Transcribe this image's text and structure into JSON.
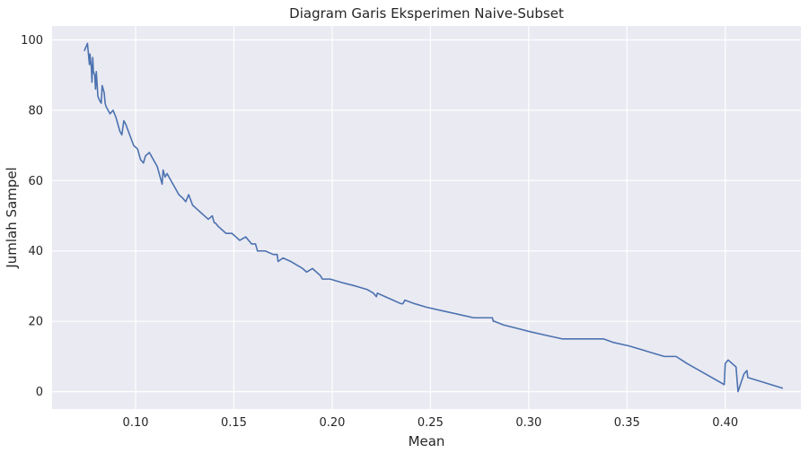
{
  "chart_data": {
    "type": "line",
    "title": "Diagram Garis Eksperimen Naive-Subset",
    "xlabel": "Mean",
    "ylabel": "Jumlah Sampel",
    "xlim": [
      0.0575,
      0.4385
    ],
    "ylim": [
      -4.95,
      103.95
    ],
    "xticks": [
      0.1,
      0.15,
      0.2,
      0.25,
      0.3,
      0.35,
      0.4
    ],
    "xtick_labels": [
      "0.10",
      "0.15",
      "0.20",
      "0.25",
      "0.30",
      "0.35",
      "0.40"
    ],
    "yticks": [
      0,
      20,
      40,
      60,
      80,
      100
    ],
    "ytick_labels": [
      "0",
      "20",
      "40",
      "60",
      "80",
      "100"
    ],
    "grid": true,
    "background": "#eaeaf2",
    "series": [
      {
        "color": "#4c72b0",
        "x": [
          0.074,
          0.0755,
          0.0765,
          0.0768,
          0.0775,
          0.0778,
          0.0782,
          0.0785,
          0.0792,
          0.0796,
          0.08,
          0.0808,
          0.0815,
          0.0825,
          0.083,
          0.084,
          0.0845,
          0.085,
          0.087,
          0.0885,
          0.09,
          0.092,
          0.093,
          0.094,
          0.095,
          0.097,
          0.099,
          0.101,
          0.1025,
          0.104,
          0.105,
          0.107,
          0.109,
          0.111,
          0.1125,
          0.1135,
          0.114,
          0.115,
          0.116,
          0.118,
          0.12,
          0.122,
          0.124,
          0.1255,
          0.127,
          0.129,
          0.131,
          0.133,
          0.135,
          0.137,
          0.139,
          0.14,
          0.1405,
          0.142,
          0.144,
          0.146,
          0.149,
          0.151,
          0.153,
          0.156,
          0.159,
          0.161,
          0.162,
          0.166,
          0.17,
          0.172,
          0.1725,
          0.175,
          0.179,
          0.185,
          0.187,
          0.19,
          0.194,
          0.195,
          0.199,
          0.205,
          0.212,
          0.218,
          0.221,
          0.2225,
          0.223,
          0.227,
          0.231,
          0.235,
          0.236,
          0.237,
          0.242,
          0.248,
          0.256,
          0.264,
          0.272,
          0.2815,
          0.282,
          0.2825,
          0.287,
          0.294,
          0.301,
          0.309,
          0.317,
          0.325,
          0.335,
          0.338,
          0.343,
          0.351,
          0.357,
          0.363,
          0.369,
          0.375,
          0.3805,
          0.39,
          0.3995,
          0.4,
          0.4015,
          0.4015,
          0.4055,
          0.4065,
          0.4095,
          0.411,
          0.4115,
          0.4175,
          0.429
        ],
        "y": [
          97,
          99,
          93,
          96,
          92,
          88,
          95,
          91,
          90,
          86,
          91,
          84,
          83,
          82,
          87,
          85,
          82,
          81,
          79,
          80,
          78,
          74,
          73,
          77,
          76,
          73,
          70,
          69,
          66,
          65,
          67,
          68,
          66,
          64,
          61,
          59,
          63,
          61,
          62,
          60,
          58,
          56,
          55,
          54,
          56,
          53,
          52,
          51,
          50,
          49,
          50,
          48,
          48,
          47,
          46,
          45,
          45,
          44,
          43,
          44,
          42,
          42,
          40,
          40,
          39,
          39,
          37,
          38,
          37,
          35,
          34,
          35,
          33,
          32,
          32,
          31,
          30,
          29,
          28,
          27,
          28,
          27,
          26,
          25,
          25,
          26,
          25,
          24,
          23,
          22,
          21,
          21,
          20,
          20,
          19,
          18,
          17,
          16,
          15,
          15,
          15,
          15,
          14,
          13,
          12,
          11,
          10,
          10,
          8,
          5,
          2,
          8,
          9,
          9,
          7,
          0,
          5,
          6,
          4,
          3,
          1
        ]
      }
    ]
  }
}
